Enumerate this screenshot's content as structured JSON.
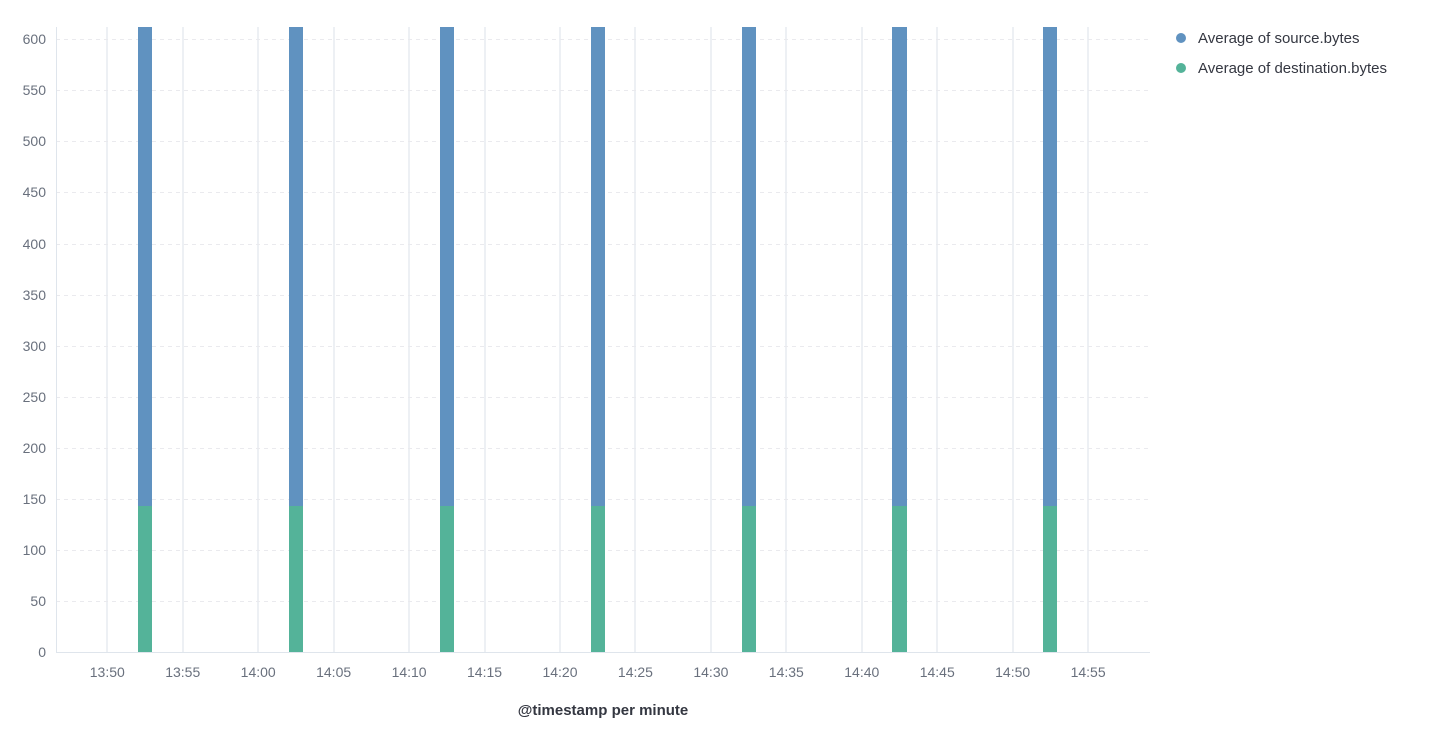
{
  "page": {
    "background": "#ffffff"
  },
  "chart_data": {
    "type": "bar",
    "stacked": true,
    "orientation": "vertical",
    "title": "",
    "xlabel": "@timestamp per minute",
    "ylabel": "",
    "x_tick_labels": [
      "13:50",
      "13:55",
      "14:00",
      "14:05",
      "14:10",
      "14:15",
      "14:20",
      "14:25",
      "14:30",
      "14:35",
      "14:40",
      "14:45",
      "14:50",
      "14:55"
    ],
    "y_tick_values": [
      0,
      50,
      100,
      150,
      200,
      250,
      300,
      350,
      400,
      450,
      500,
      550,
      600
    ],
    "ylim": [
      0,
      612
    ],
    "x_domain_minutes": {
      "start": 826.6,
      "end": 899.1
    },
    "bucket_width_minutes": 1,
    "categories": [
      "13:52",
      "14:02",
      "14:12",
      "14:22",
      "14:32",
      "14:42",
      "14:52"
    ],
    "series": [
      {
        "name": "Average of source.bytes",
        "color": "#6092C0",
        "values": [
          469,
          469,
          469,
          469,
          469,
          469,
          469
        ]
      },
      {
        "name": "Average of destination.bytes",
        "color": "#54B399",
        "values": [
          143,
          143,
          143,
          143,
          143,
          143,
          143
        ]
      }
    ],
    "stack_order_bottom_to_top": [
      "Average of destination.bytes",
      "Average of source.bytes"
    ],
    "grid": {
      "vertical": "solid",
      "horizontal": "dashed"
    },
    "legend_position": "top-right"
  },
  "legend": {
    "items": [
      {
        "label": "Average of source.bytes",
        "color": "#6092C0"
      },
      {
        "label": "Average of destination.bytes",
        "color": "#54B399"
      }
    ]
  },
  "styles": {
    "bar_blue": "#6092C0",
    "bar_green": "#54B399",
    "tick_label_color": "#69707D",
    "axis_title_color": "#343741",
    "legend_text_color": "#343741",
    "vertical_grid_color": "#edf0f4",
    "horizontal_grid_color": "#eaeaee",
    "axis_line_color": "#dfe5ec"
  }
}
